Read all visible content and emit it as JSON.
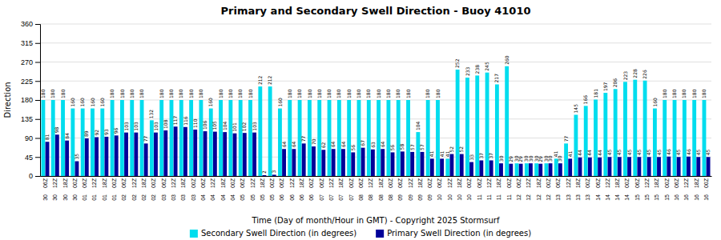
{
  "chart_data": {
    "type": "bar",
    "title": "Primary and Secondary Swell Direction - Buoy 41010",
    "xlabel": "Time (Day of month/Hour in GMT) - Copyright 2025 Stormsurf",
    "ylabel": "Direction",
    "categories": [
      "06Z",
      "12Z",
      "18Z",
      "00Z",
      "06Z",
      "12Z",
      "18Z",
      "00Z",
      "06Z",
      "12Z",
      "18Z",
      "00Z",
      "06Z",
      "12Z",
      "18Z",
      "00Z",
      "06Z",
      "12Z",
      "18Z",
      "00Z",
      "06Z",
      "12Z",
      "18Z",
      "00Z",
      "06Z",
      "12Z",
      "18Z",
      "00Z",
      "06Z",
      "12Z",
      "18Z",
      "00Z",
      "06Z",
      "12Z",
      "18Z",
      "00Z",
      "06Z",
      "12Z",
      "18Z",
      "00Z",
      "06Z",
      "12Z",
      "18Z",
      "00Z",
      "06Z",
      "12Z",
      "18Z",
      "00Z",
      "06Z",
      "12Z",
      "18Z",
      "00Z",
      "06Z",
      "12Z",
      "18Z",
      "00Z",
      "06Z",
      "12Z",
      "18Z",
      "00Z",
      "06Z",
      "12Z",
      "18Z",
      "00Z",
      "06Z",
      "12Z",
      "18Z",
      "00Z"
    ],
    "days": [
      "30",
      "30",
      "30",
      "30",
      "01",
      "01",
      "01",
      "01",
      "02",
      "02",
      "02",
      "02",
      "03",
      "03",
      "03",
      "03",
      "04",
      "04",
      "04",
      "04",
      "05",
      "05",
      "05",
      "05",
      "06",
      "06",
      "06",
      "06",
      "07",
      "07",
      "07",
      "07",
      "08",
      "08",
      "08",
      "08",
      "09",
      "09",
      "09",
      "09",
      "10",
      "10",
      "10",
      "10",
      "11",
      "11",
      "11",
      "11",
      "12",
      "12",
      "12",
      "12",
      "13",
      "13",
      "13",
      "13",
      "14",
      "14",
      "14",
      "14",
      "15",
      "15",
      "15",
      "15",
      "16",
      "16",
      "16",
      "16"
    ],
    "series": [
      {
        "name": "Secondary Swell Direction (in degrees)",
        "color": "#00ddee",
        "values": [
          180,
          180,
          180,
          160,
          160,
          160,
          160,
          180,
          180,
          180,
          180,
          132,
          180,
          180,
          180,
          180,
          180,
          160,
          180,
          180,
          180,
          180,
          212,
          212,
          160,
          180,
          180,
          180,
          180,
          180,
          180,
          180,
          180,
          180,
          180,
          180,
          180,
          180,
          104,
          180,
          180,
          41,
          252,
          233,
          238,
          245,
          217,
          260,
          30,
          30,
          30,
          30,
          41,
          77,
          145,
          166,
          181,
          197,
          206,
          223,
          228,
          226,
          160,
          180,
          180,
          180,
          180,
          180
        ]
      },
      {
        "name": "Primary Swell Direction (in degrees)",
        "color": "#000099",
        "values": [
          81,
          98,
          84,
          35,
          89,
          92,
          93,
          96,
          103,
          103,
          77,
          103,
          108,
          117,
          116,
          110,
          106,
          105,
          104,
          101,
          102,
          103,
          2,
          3,
          64,
          64,
          77,
          70,
          62,
          64,
          64,
          56,
          67,
          63,
          64,
          56,
          58,
          57,
          57,
          41,
          41,
          52,
          52,
          33,
          37,
          37,
          30,
          29,
          29,
          30,
          29,
          30,
          30,
          41,
          44,
          44,
          44,
          45,
          45,
          45,
          45,
          45,
          45,
          46,
          45,
          46,
          45,
          45
        ]
      }
    ],
    "ylim": [
      0,
      360
    ],
    "yticks": [
      0,
      45,
      90,
      135,
      180,
      225,
      270,
      315,
      360
    ],
    "grid": true,
    "legend": "bottom",
    "data_labels": true
  }
}
